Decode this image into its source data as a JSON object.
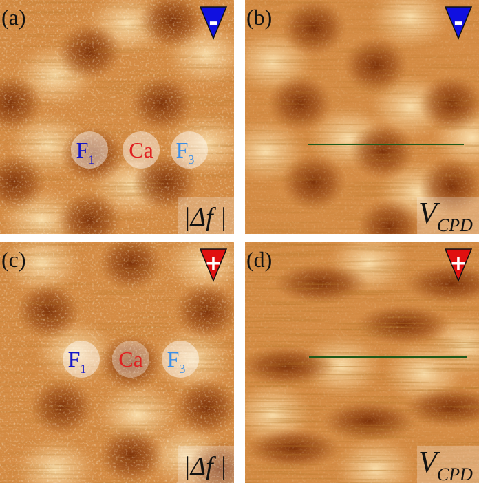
{
  "panels": [
    {
      "label": "(a)",
      "sign": "-",
      "atoms": [
        {
          "symbol": "F",
          "subscript": "1"
        },
        {
          "symbol": "Ca"
        },
        {
          "symbol": "F",
          "subscript": "3"
        }
      ],
      "signal": {
        "text": "|Δf |"
      }
    },
    {
      "label": "(b)",
      "sign": "-",
      "signal": {
        "symbol": "V",
        "subscript": "CPD"
      }
    },
    {
      "label": "(c)",
      "sign": "+",
      "atoms": [
        {
          "symbol": "F",
          "subscript": "1"
        },
        {
          "symbol": "Ca"
        },
        {
          "symbol": "F",
          "subscript": "3"
        }
      ],
      "signal": {
        "text": "|Δf |"
      }
    },
    {
      "label": "(d)",
      "sign": "+",
      "signal": {
        "symbol": "V",
        "subscript": "CPD"
      }
    }
  ]
}
